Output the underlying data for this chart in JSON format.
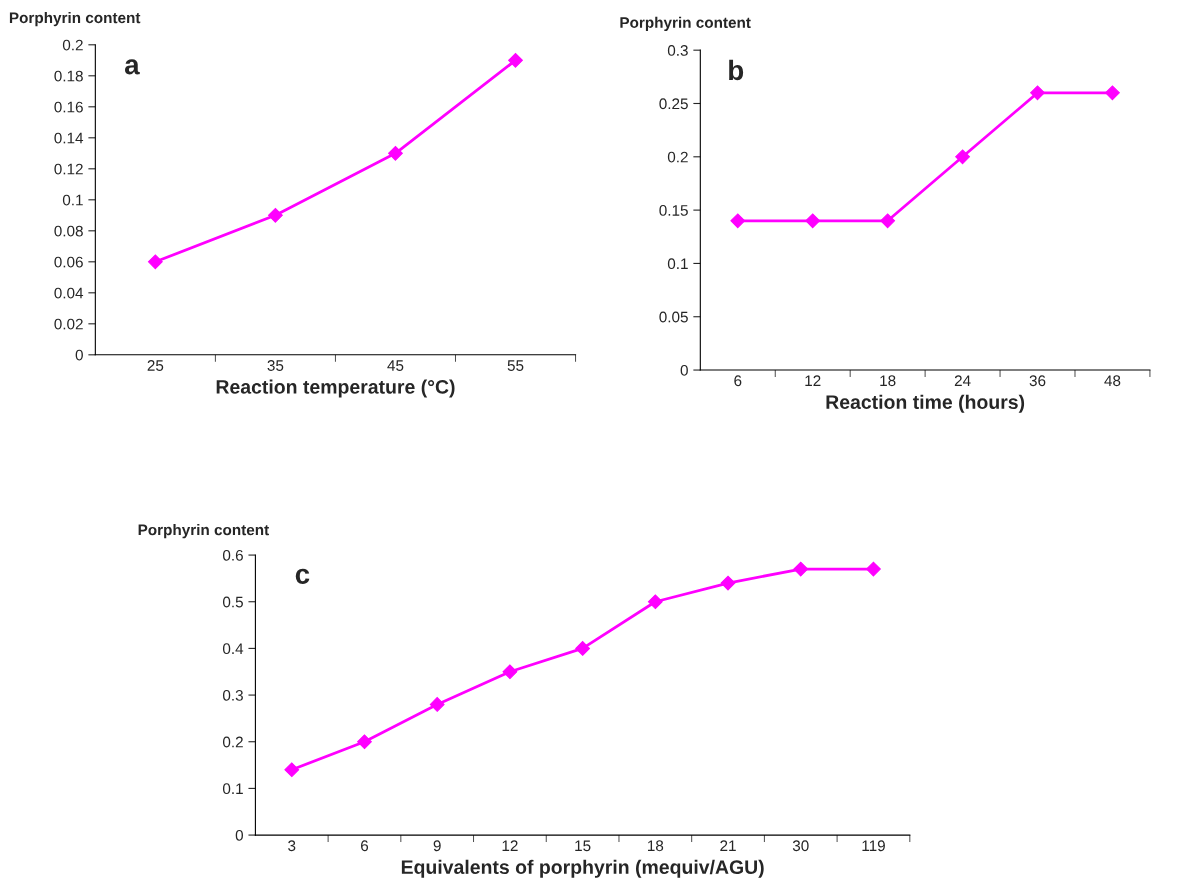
{
  "chart_data": [
    {
      "type": "line",
      "categories": [
        "25",
        "35",
        "45",
        "55"
      ],
      "xlabel": "Reaction temperature (°C)",
      "ylabel": "Porphyrin content",
      "annotations": [
        "a"
      ],
      "series": [
        {
          "color": "#ff00ff",
          "values": [
            0.06,
            0.09,
            0.13,
            0.19
          ]
        }
      ],
      "ylim": [
        0,
        0.2
      ],
      "yticks": [
        0,
        0.02,
        0.04,
        0.06,
        0.08,
        0.1,
        0.12,
        0.14,
        0.16,
        0.18,
        0.2
      ],
      "grid": false,
      "marker": "diamond",
      "line_style": "solid"
    },
    {
      "type": "line",
      "categories": [
        "6",
        "12",
        "18",
        "24",
        "36",
        "48"
      ],
      "xlabel": "Reaction time (hours)",
      "ylabel": "Porphyrin content",
      "annotations": [
        "b"
      ],
      "series": [
        {
          "color": "#ff00ff",
          "values": [
            0.14,
            0.14,
            0.14,
            0.2,
            0.26,
            0.26
          ]
        }
      ],
      "ylim": [
        0,
        0.3
      ],
      "yticks": [
        0,
        0.05,
        0.1,
        0.15,
        0.2,
        0.25,
        0.3
      ],
      "grid": false,
      "marker": "diamond",
      "line_style": "solid"
    },
    {
      "type": "line",
      "categories": [
        "3",
        "6",
        "9",
        "12",
        "15",
        "18",
        "21",
        "30",
        "119"
      ],
      "xlabel": "Equivalents of porphyrin (mequiv/AGU)",
      "ylabel": "Porphyrin content",
      "annotations": [
        "c"
      ],
      "series": [
        {
          "color": "#ff00ff",
          "values": [
            0.14,
            0.2,
            0.28,
            0.35,
            0.4,
            0.5,
            0.54,
            0.57,
            0.57
          ]
        }
      ],
      "ylim": [
        0,
        0.6
      ],
      "yticks": [
        0,
        0.1,
        0.2,
        0.3,
        0.4,
        0.5,
        0.6
      ],
      "grid": false,
      "marker": "diamond",
      "line_style": "solid"
    }
  ]
}
